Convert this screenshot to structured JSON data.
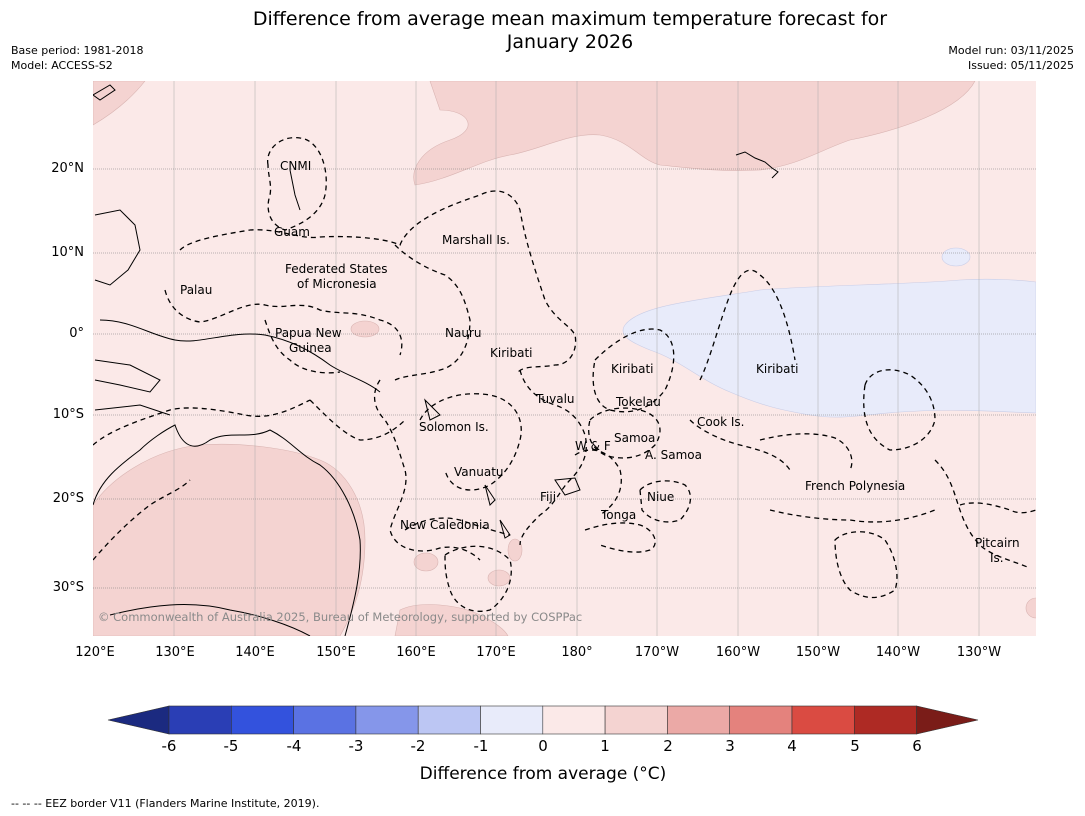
{
  "title_line1": "Difference from average mean maximum temperature forecast for",
  "title_line2": "January 2026",
  "meta_left": [
    "Base period: 1981-2018",
    "Model: ACCESS-S2"
  ],
  "meta_right": [
    "Model run: 03/11/2025",
    "Issued: 05/11/2025"
  ],
  "lat_labels": [
    "20°N",
    "10°N",
    "0°",
    "10°S",
    "20°S",
    "30°S"
  ],
  "lon_labels": [
    "120°E",
    "130°E",
    "140°E",
    "150°E",
    "160°E",
    "170°E",
    "180°",
    "170°W",
    "160°W",
    "150°W",
    "140°W",
    "130°W"
  ],
  "region_labels": [
    {
      "id": "cnmi",
      "text": "CNMI"
    },
    {
      "id": "guam",
      "text": "Guam"
    },
    {
      "id": "marshall",
      "text": "Marshall Is."
    },
    {
      "id": "fsm1",
      "text": "Federated States"
    },
    {
      "id": "fsm2",
      "text": "of Micronesia"
    },
    {
      "id": "palau",
      "text": "Palau"
    },
    {
      "id": "png1",
      "text": "Papua New"
    },
    {
      "id": "png2",
      "text": "Guinea"
    },
    {
      "id": "nauru",
      "text": "Nauru"
    },
    {
      "id": "kiribati_w",
      "text": "Kiribati"
    },
    {
      "id": "kiribati_c",
      "text": "Kiribati"
    },
    {
      "id": "kiribati_e",
      "text": "Kiribati"
    },
    {
      "id": "tuvalu",
      "text": "Tuvalu"
    },
    {
      "id": "tokelau",
      "text": "Tokelau"
    },
    {
      "id": "cook",
      "text": "Cook Is."
    },
    {
      "id": "solomon",
      "text": "Solomon Is."
    },
    {
      "id": "samoa",
      "text": "Samoa"
    },
    {
      "id": "wf",
      "text": "W & F"
    },
    {
      "id": "asamoa",
      "text": "A. Samoa"
    },
    {
      "id": "vanuatu",
      "text": "Vanuatu"
    },
    {
      "id": "fiji",
      "text": "Fiji"
    },
    {
      "id": "niue",
      "text": "Niue"
    },
    {
      "id": "tonga",
      "text": "Tonga"
    },
    {
      "id": "frpoly",
      "text": "French Polynesia"
    },
    {
      "id": "newcal",
      "text": "New Caledonia"
    },
    {
      "id": "pitcairn1",
      "text": "Pitcairn"
    },
    {
      "id": "pitcairn2",
      "text": "Is."
    }
  ],
  "copyright": "© Commonwealth of Australia 2025, Bureau of Meteorology, supported by COSPPac",
  "colorbar": {
    "label": "Difference from average (°C)",
    "ticks": [
      "-6",
      "-5",
      "-4",
      "-3",
      "-2",
      "-1",
      "0",
      "1",
      "2",
      "3",
      "4",
      "5",
      "6"
    ],
    "colors": [
      "#1b2a80",
      "#2a3eb5",
      "#3352dd",
      "#5a72e3",
      "#8596ea",
      "#bcc6f3",
      "#e8ebfa",
      "#fbe9e8",
      "#f4d3d1",
      "#eba9a6",
      "#e4827d",
      "#da4b42",
      "#ae2a24",
      "#7a1c18"
    ]
  },
  "legend_note": "--  --  -- EEZ border V11 (Flanders Marine Institute, 2019)."
}
